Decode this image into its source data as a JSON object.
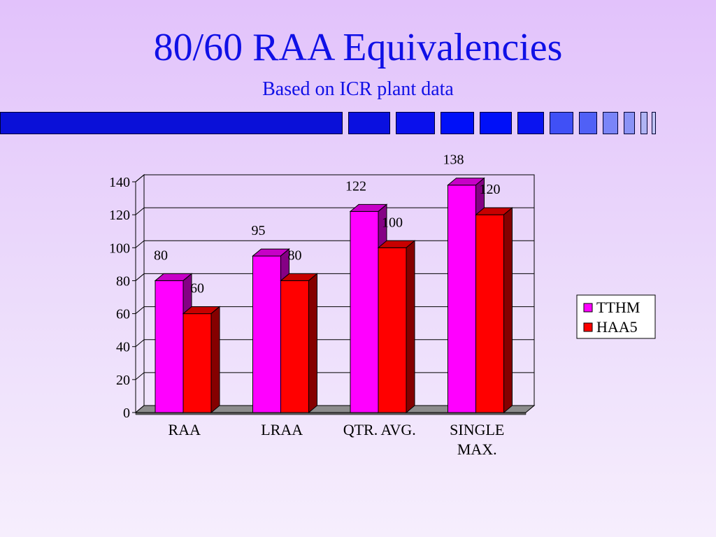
{
  "slide": {
    "title": "80/60 RAA Equivalencies",
    "subtitle": "Based on ICR plant data"
  },
  "colors": {
    "title": "#1010e6",
    "tthm": "#ff00ff",
    "haa5": "#ff0000"
  },
  "chart_data": {
    "type": "bar",
    "style": "3d-clustered-column",
    "categories": [
      [
        "RAA"
      ],
      [
        "LRAA"
      ],
      [
        "QTR. AVG."
      ],
      [
        "SINGLE",
        "MAX."
      ]
    ],
    "series": [
      {
        "name": "TTHM",
        "values": [
          80,
          95,
          122,
          138
        ],
        "color": "#ff00ff"
      },
      {
        "name": "HAA5",
        "values": [
          60,
          80,
          100,
          120
        ],
        "color": "#ff0000"
      }
    ],
    "ylim": [
      0,
      140
    ],
    "yticks": [
      0,
      20,
      40,
      60,
      80,
      100,
      120,
      140
    ],
    "grid": true,
    "legend": "right",
    "data_labels": true
  }
}
